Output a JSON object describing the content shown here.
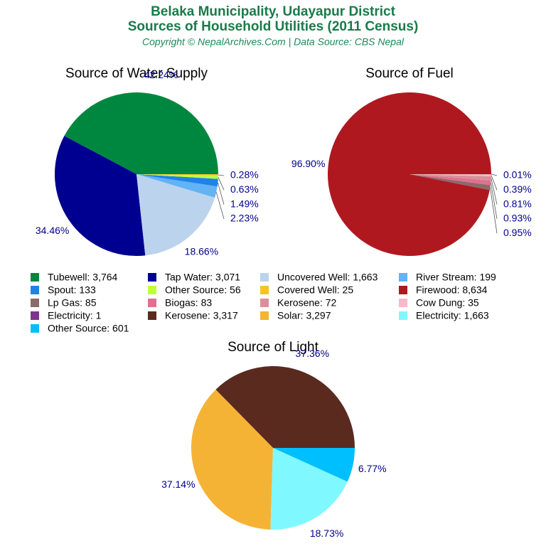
{
  "header": {
    "title_lines": [
      "Belaka Municipality, Udayapur District",
      "Sources of Household Utilities (2011 Census)"
    ],
    "subtitle": "Copyright © NepalArchives.Com | Data Source: CBS Nepal"
  },
  "chart_data": [
    {
      "type": "pie",
      "title": "Source of Water Supply",
      "categories": [
        "Tubewell: 3,764",
        "Tap Water: 3,071",
        "Uncovered Well: 1,663",
        "River Stream: 199",
        "Spout: 133",
        "Other Source: 56",
        "Covered Well: 25"
      ],
      "values": [
        42.24,
        34.46,
        18.66,
        2.23,
        1.49,
        0.63,
        0.28
      ],
      "value_labels": [
        "42.24%",
        "34.46%",
        "18.66%",
        "2.23%",
        "1.49%",
        "0.63%",
        "0.28%"
      ],
      "colors": [
        "#00873f",
        "#000090",
        "#bcd3ee",
        "#63b3f5",
        "#1f82eb",
        "#bfff3f",
        "#f5c22a"
      ]
    },
    {
      "type": "pie",
      "title": "Source of Fuel",
      "categories": [
        "Firewood: 8,634",
        "Lp Gas: 85",
        "Biogas: 83",
        "Kerosene: 72",
        "Cow Dung: 35",
        "Electricity: 1"
      ],
      "values": [
        96.9,
        0.95,
        0.93,
        0.81,
        0.39,
        0.01
      ],
      "value_labels": [
        "96.90%",
        "0.95%",
        "0.93%",
        "0.81%",
        "0.39%",
        "0.01%"
      ],
      "colors": [
        "#b01820",
        "#8b6a6a",
        "#df7090",
        "#d9909a",
        "#fbb8c8",
        "#7d3590"
      ]
    },
    {
      "type": "pie",
      "title": "Source of Light",
      "categories": [
        "Kerosene: 3,317",
        "Solar: 3,297",
        "Electricity: 1,663",
        "Other Source: 601"
      ],
      "values": [
        37.36,
        37.14,
        18.73,
        6.77
      ],
      "value_labels": [
        "37.36%",
        "37.14%",
        "18.73%",
        "6.77%"
      ],
      "colors": [
        "#5b2a1f",
        "#f5b335",
        "#7ff9ff",
        "#00bfff"
      ]
    }
  ]
}
